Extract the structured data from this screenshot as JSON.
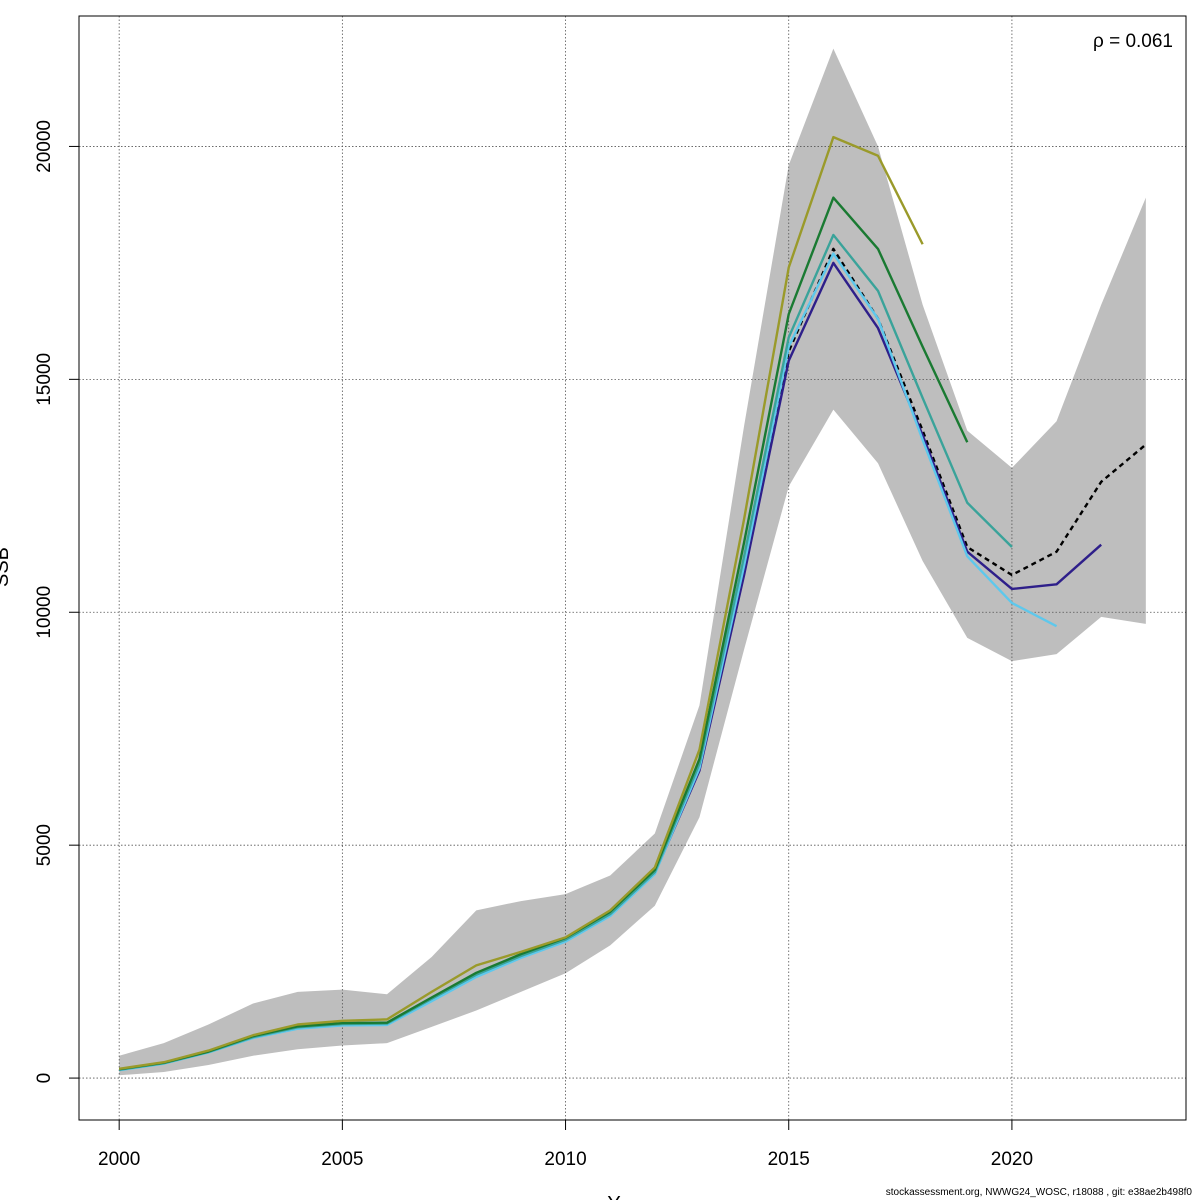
{
  "chart_data": {
    "type": "line",
    "annotation": "ρ = 0.061",
    "xlabel": "Y",
    "ylabel": "SSB",
    "xlim": [
      1999.1,
      2023.9
    ],
    "ylim": [
      -900,
      22800
    ],
    "x_ticks": [
      2000,
      2005,
      2010,
      2015,
      2020
    ],
    "y_ticks": [
      0,
      5000,
      10000,
      15000,
      20000
    ],
    "grid": true,
    "band": {
      "x": [
        2000,
        2001,
        2002,
        2003,
        2004,
        2005,
        2006,
        2007,
        2008,
        2009,
        2010,
        2011,
        2012,
        2013,
        2014,
        2015,
        2016,
        2017,
        2018,
        2019,
        2020,
        2021,
        2022,
        2023
      ],
      "upper": [
        480,
        750,
        1150,
        1600,
        1850,
        1900,
        1800,
        2600,
        3600,
        3800,
        3950,
        4350,
        5250,
        8000,
        14000,
        19600,
        22100,
        20000,
        16600,
        13900,
        13100,
        14100,
        16600,
        18900
      ],
      "lower": [
        60,
        130,
        280,
        480,
        620,
        700,
        750,
        1100,
        1450,
        1850,
        2250,
        2850,
        3700,
        5600,
        9200,
        12700,
        14350,
        13200,
        11100,
        9450,
        8950,
        9100,
        9900,
        9750
      ],
      "color": "#bebebe"
    },
    "series": [
      {
        "color": "#000000",
        "dashed": true,
        "x": [
          2000,
          2001,
          2002,
          2003,
          2004,
          2005,
          2006,
          2007,
          2008,
          2009,
          2010,
          2011,
          2012,
          2013,
          2014,
          2015,
          2016,
          2017,
          2018,
          2019,
          2020,
          2021,
          2022,
          2023
        ],
        "y": [
          180,
          320,
          560,
          880,
          1080,
          1150,
          1160,
          1680,
          2200,
          2600,
          2950,
          3500,
          4400,
          6700,
          11000,
          15600,
          17800,
          16300,
          13900,
          11400,
          10800,
          11300,
          12800,
          13600
        ]
      },
      {
        "color": "#2e1f8a",
        "dashed": false,
        "x": [
          2000,
          2001,
          2002,
          2003,
          2004,
          2005,
          2006,
          2007,
          2008,
          2009,
          2010,
          2011,
          2012,
          2013,
          2014,
          2015,
          2016,
          2017,
          2018,
          2019,
          2020,
          2021,
          2022
        ],
        "y": [
          180,
          320,
          560,
          880,
          1080,
          1150,
          1160,
          1680,
          2200,
          2600,
          2950,
          3500,
          4400,
          6600,
          10800,
          15400,
          17500,
          16100,
          13800,
          11300,
          10500,
          10600,
          11450
        ]
      },
      {
        "color": "#5ec8ec",
        "dashed": false,
        "x": [
          2000,
          2001,
          2002,
          2003,
          2004,
          2005,
          2006,
          2007,
          2008,
          2009,
          2010,
          2011,
          2012,
          2013,
          2014,
          2015,
          2016,
          2017,
          2018,
          2019,
          2020,
          2021
        ],
        "y": [
          170,
          310,
          550,
          860,
          1060,
          1130,
          1140,
          1650,
          2170,
          2580,
          2930,
          3480,
          4380,
          6650,
          11000,
          15700,
          17700,
          16300,
          13700,
          11200,
          10200,
          9700
        ]
      },
      {
        "color": "#3aa39a",
        "dashed": false,
        "x": [
          2000,
          2001,
          2002,
          2003,
          2004,
          2005,
          2006,
          2007,
          2008,
          2009,
          2010,
          2011,
          2012,
          2013,
          2014,
          2015,
          2016,
          2017,
          2018,
          2019,
          2020
        ],
        "y": [
          180,
          320,
          560,
          880,
          1090,
          1160,
          1170,
          1700,
          2220,
          2620,
          2970,
          3520,
          4420,
          6750,
          11200,
          15900,
          18100,
          16900,
          14600,
          12350,
          11400
        ]
      },
      {
        "color": "#1a7a32",
        "dashed": false,
        "x": [
          2000,
          2001,
          2002,
          2003,
          2004,
          2005,
          2006,
          2007,
          2008,
          2009,
          2010,
          2011,
          2012,
          2013,
          2014,
          2015,
          2016,
          2017,
          2018,
          2019
        ],
        "y": [
          190,
          330,
          570,
          900,
          1110,
          1180,
          1190,
          1730,
          2260,
          2660,
          3010,
          3570,
          4470,
          6850,
          11500,
          16400,
          18900,
          17800,
          15700,
          13650
        ]
      },
      {
        "color": "#9a9a2a",
        "dashed": false,
        "x": [
          2000,
          2001,
          2002,
          2003,
          2004,
          2005,
          2006,
          2007,
          2008,
          2009,
          2010,
          2011,
          2012,
          2013,
          2014,
          2015,
          2016,
          2017,
          2018
        ],
        "y": [
          200,
          340,
          590,
          920,
          1150,
          1230,
          1260,
          1850,
          2420,
          2710,
          3020,
          3600,
          4520,
          7050,
          12000,
          17400,
          20200,
          19800,
          17900
        ]
      }
    ]
  },
  "footer": "stockassessment.org, NWWG24_WOSC, r18088 , git: e38ae2b498f0"
}
